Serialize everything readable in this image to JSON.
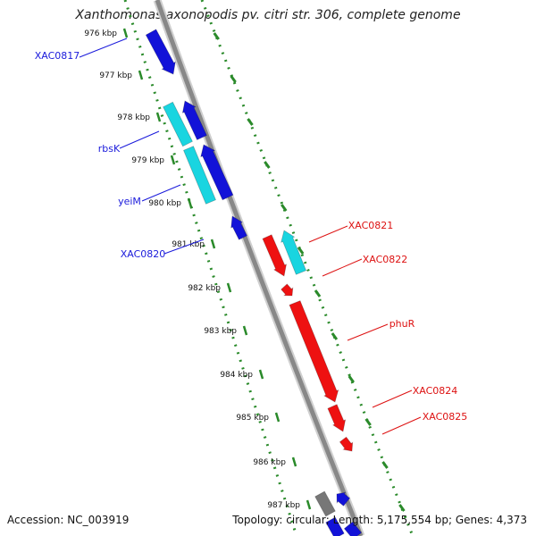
{
  "title": "Xanthomonas axonopodis pv. citri str. 306, complete genome",
  "accession_label": "Accession:",
  "accession": "NC_003919",
  "topology_label": "Topology:",
  "topology": "circular;",
  "length_label": "Length:",
  "length": "5,175,554 bp;",
  "genes_label": "Genes:",
  "genes": "4,373",
  "colors": {
    "left_label": "#1a1adb",
    "right_label": "#dd1111",
    "forward": "#ee1111",
    "reverse": "#1212d8",
    "rna": "#19d5e0",
    "other": "#777777",
    "tick": "#2a8a2a",
    "backbone": "#888888"
  },
  "ticks": [
    {
      "label": "976 kbp"
    },
    {
      "label": "977 kbp"
    },
    {
      "label": "978 kbp"
    },
    {
      "label": "979 kbp"
    },
    {
      "label": "980 kbp"
    },
    {
      "label": "981 kbp"
    },
    {
      "label": "982 kbp"
    },
    {
      "label": "983 kbp"
    },
    {
      "label": "984 kbp"
    },
    {
      "label": "985 kbp"
    },
    {
      "label": "986 kbp"
    },
    {
      "label": "987 kbp"
    }
  ],
  "left_labels": [
    {
      "text": "XAC0817"
    },
    {
      "text": "rbsK"
    },
    {
      "text": "yeiM"
    },
    {
      "text": "XAC0820"
    }
  ],
  "right_labels": [
    {
      "text": "XAC0821"
    },
    {
      "text": "XAC0822"
    },
    {
      "text": "phuR"
    },
    {
      "text": "XAC0824"
    },
    {
      "text": "XAC0825"
    }
  ]
}
